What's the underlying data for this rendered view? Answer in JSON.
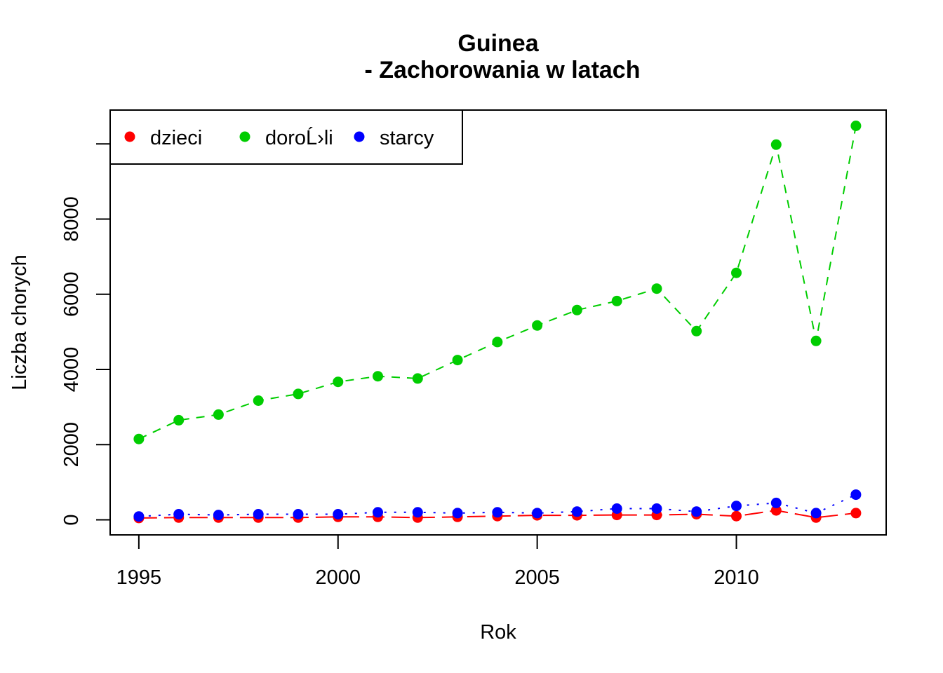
{
  "chart_data": {
    "type": "line",
    "title_line1": "Guinea",
    "title_line2": "- Zachorowania w latach",
    "xlabel": "Rok",
    "ylabel": "Liczba chorych",
    "x": [
      1995,
      1996,
      1997,
      1998,
      1999,
      2000,
      2001,
      2002,
      2003,
      2004,
      2005,
      2006,
      2007,
      2008,
      2009,
      2010,
      2011,
      2012,
      2013
    ],
    "xlim": [
      1994.28,
      2013.76
    ],
    "ylim": [
      -400,
      10900
    ],
    "xticks": [
      1995,
      2000,
      2005,
      2010
    ],
    "yticks": [
      0,
      2000,
      4000,
      6000,
      8000
    ],
    "series": [
      {
        "name": "dzieci",
        "color": "#ff0000",
        "dash": "long-dash",
        "values": [
          50,
          60,
          60,
          60,
          60,
          80,
          80,
          60,
          80,
          100,
          120,
          120,
          130,
          130,
          150,
          100,
          250,
          60,
          180
        ]
      },
      {
        "name": "doroĹ›li",
        "color": "#00cd00",
        "dash": "dashed",
        "values": [
          2150,
          2650,
          2800,
          3170,
          3350,
          3670,
          3820,
          3760,
          4250,
          4730,
          5170,
          5580,
          5820,
          6150,
          5020,
          6570,
          9980,
          4760,
          10480
        ]
      },
      {
        "name": "starcy",
        "color": "#0000ff",
        "dash": "dotted",
        "values": [
          90,
          150,
          130,
          150,
          150,
          150,
          200,
          200,
          180,
          200,
          180,
          220,
          300,
          300,
          220,
          370,
          450,
          180,
          670
        ]
      }
    ],
    "legend_position": "top-left"
  }
}
